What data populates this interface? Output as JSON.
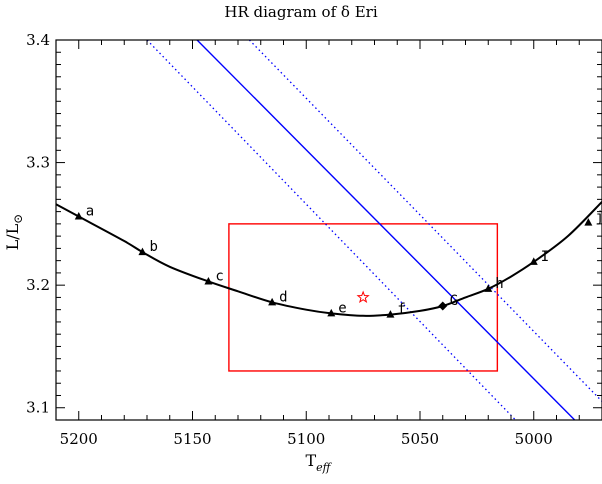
{
  "chart_data": {
    "type": "line",
    "title": "HR diagram of δ Eri",
    "xlabel": "T",
    "xlabel_sub": "eff",
    "ylabel": "L/L",
    "ylabel_sub": "⊙",
    "xlim": [
      5210,
      4970
    ],
    "ylim": [
      3.09,
      3.4
    ],
    "x_ticks": [
      5200,
      5150,
      5100,
      5050,
      5000
    ],
    "y_ticks": [
      3.1,
      3.2,
      3.3,
      3.4
    ],
    "x_tick_labels": [
      "5200",
      "5150",
      "5100",
      "5050",
      "5000"
    ],
    "y_tick_labels": [
      "3.1",
      "3.2",
      "3.3",
      "3.4"
    ],
    "grid": false,
    "colors": {
      "track": "#000000",
      "constraint": "#0000ff",
      "box": "#ff0000",
      "star": "#ff0000"
    },
    "track": {
      "x": [
        5210,
        5200,
        5180,
        5172,
        5160,
        5143,
        5130,
        5115,
        5100,
        5089,
        5075,
        5063,
        5050,
        5040,
        5030,
        5020,
        5010,
        5000,
        4985,
        4970
      ],
      "y": [
        3.266,
        3.256,
        3.236,
        3.227,
        3.215,
        3.203,
        3.195,
        3.186,
        3.18,
        3.177,
        3.175,
        3.176,
        3.179,
        3.183,
        3.19,
        3.197,
        3.207,
        3.219,
        3.24,
        3.268
      ]
    },
    "models": [
      {
        "label": "a",
        "x": 5200,
        "y": 3.256,
        "marker": "triangle"
      },
      {
        "label": "b",
        "x": 5172,
        "y": 3.227,
        "marker": "triangle"
      },
      {
        "label": "c",
        "x": 5143,
        "y": 3.203,
        "marker": "triangle"
      },
      {
        "label": "d",
        "x": 5115,
        "y": 3.186,
        "marker": "triangle"
      },
      {
        "label": "e",
        "x": 5089,
        "y": 3.177,
        "marker": "triangle"
      },
      {
        "label": "f",
        "x": 5063,
        "y": 3.176,
        "marker": "triangle"
      },
      {
        "label": "G",
        "x": 5040,
        "y": 3.183,
        "marker": "diamond"
      },
      {
        "label": "h",
        "x": 5020,
        "y": 3.197,
        "marker": "triangle"
      },
      {
        "label": "I",
        "x": 5000,
        "y": 3.219,
        "marker": "triangle"
      },
      {
        "label": "j",
        "x": 4976,
        "y": 3.251,
        "marker": "triangle"
      }
    ],
    "constraint_line": {
      "x": [
        5148,
        4982
      ],
      "y": [
        3.4,
        3.09
      ]
    },
    "constraint_bounds": [
      {
        "x": [
          5170,
          5008
        ],
        "y": [
          3.4,
          3.09
        ]
      },
      {
        "x": [
          5125,
          4962
        ],
        "y": [
          3.4,
          3.09
        ]
      }
    ],
    "error_box": {
      "x": [
        5134,
        5016
      ],
      "y": [
        3.13,
        3.25
      ]
    },
    "star": {
      "x": 5075,
      "y": 3.19
    }
  }
}
